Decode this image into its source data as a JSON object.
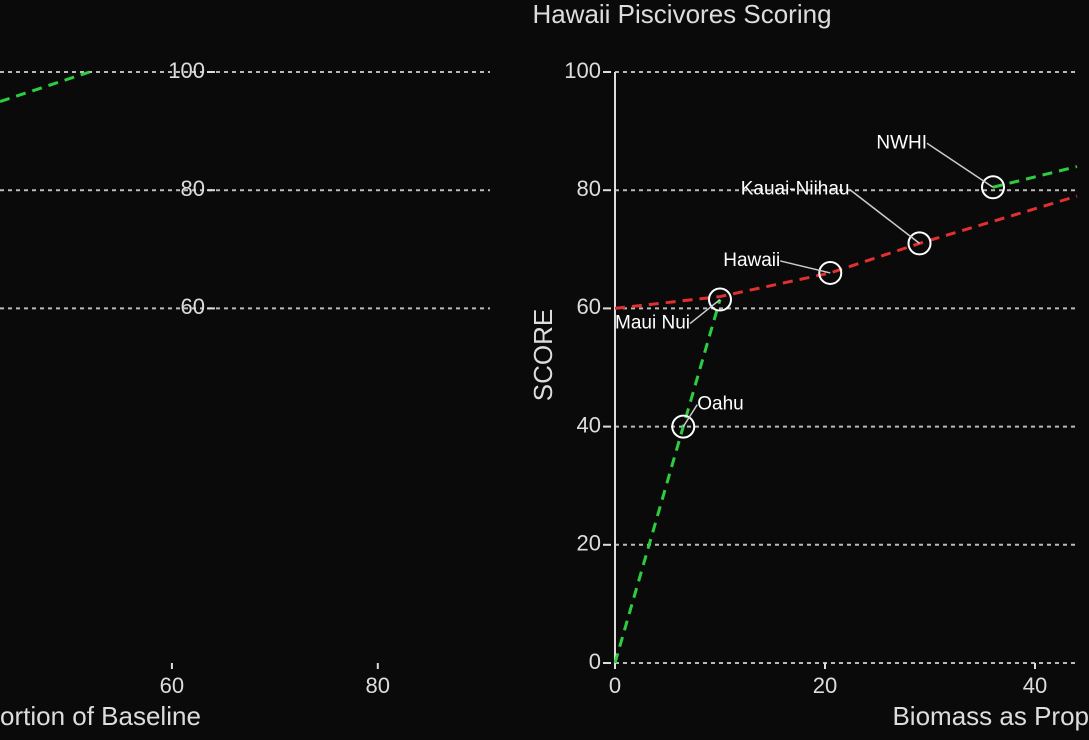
{
  "chart_data": [
    {
      "type": "line",
      "title": "Hawaii Piscivores Scoring",
      "xlabel": "Biomass as Prop",
      "ylabel": "SCORE",
      "xlim": [
        0,
        44
      ],
      "ylim": [
        0,
        100
      ],
      "xticks": [
        0,
        20,
        40
      ],
      "yticks": [
        0,
        20,
        40,
        60,
        80,
        100
      ],
      "grid": true,
      "series": [
        {
          "color": "#2ecc40",
          "x": [
            0,
            6.5,
            10
          ],
          "values": [
            0,
            40,
            61.5
          ]
        },
        {
          "color": "#e03030",
          "x": [
            0,
            10,
            20.5,
            29,
            44
          ],
          "values": [
            60,
            62,
            66,
            71,
            79
          ]
        },
        {
          "color": "#2ecc40",
          "x": [
            36,
            44
          ],
          "values": [
            80.5,
            84
          ]
        }
      ],
      "points": {
        "x": [
          6.5,
          10,
          20.5,
          29,
          36
        ],
        "values": [
          40,
          61.5,
          66,
          71,
          80.5
        ],
        "labels": [
          "Oahu",
          "Maui Nui",
          "Hawaii",
          "Kauai-Niihau",
          "NWHI"
        ]
      }
    },
    {
      "type": "line",
      "xlabel": "ortion of Baseline",
      "xlim": [
        43.3,
        90.9
      ],
      "ylim": [
        0,
        100
      ],
      "xticks": [
        60,
        80
      ],
      "yticks": [
        60,
        80,
        100
      ],
      "grid": true,
      "series": [
        {
          "color": "#2ecc40",
          "x": [
            43.3,
            52
          ],
          "values": [
            95,
            100
          ]
        }
      ]
    }
  ]
}
